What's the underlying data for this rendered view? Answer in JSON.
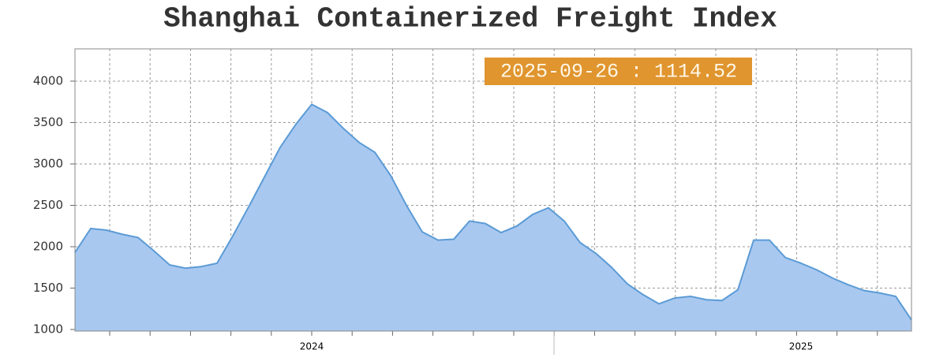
{
  "chart_data": {
    "type": "area",
    "title": "Shanghai Containerized Freight Index",
    "annotation": "2025-09-26 : 1114.52",
    "categories": [
      null,
      null,
      null,
      null,
      null,
      null,
      null,
      null,
      null,
      null,
      null,
      null,
      null,
      null,
      null,
      "2024",
      null,
      null,
      null,
      null,
      null,
      null,
      null,
      null,
      null,
      null,
      null,
      null,
      null,
      null,
      null,
      null,
      null,
      null,
      null,
      null,
      null,
      null,
      null,
      null,
      null,
      null,
      null,
      null,
      null,
      null,
      "2025",
      null,
      null,
      null,
      null,
      null,
      null,
      null
    ],
    "values": [
      1930,
      2220,
      2200,
      2150,
      2110,
      1950,
      1780,
      1740,
      1760,
      1800,
      2130,
      2480,
      2840,
      3200,
      3480,
      3720,
      3620,
      3430,
      3260,
      3140,
      2860,
      2500,
      2180,
      2080,
      2090,
      2310,
      2280,
      2170,
      2250,
      2390,
      2470,
      2310,
      2050,
      1920,
      1750,
      1550,
      1420,
      1310,
      1380,
      1400,
      1360,
      1350,
      1480,
      2080,
      2080,
      1870,
      1800,
      1720,
      1620,
      1540,
      1470,
      1440,
      1400,
      1114.52
    ],
    "color": "#a9c8f0",
    "line_color": "#5b9bd5",
    "annotation_color": "#e0952f",
    "ylim": [
      1000,
      4390
    ],
    "yticks": [
      1000,
      1500,
      2000,
      2500,
      3000,
      3500,
      4000
    ],
    "grid": true
  }
}
